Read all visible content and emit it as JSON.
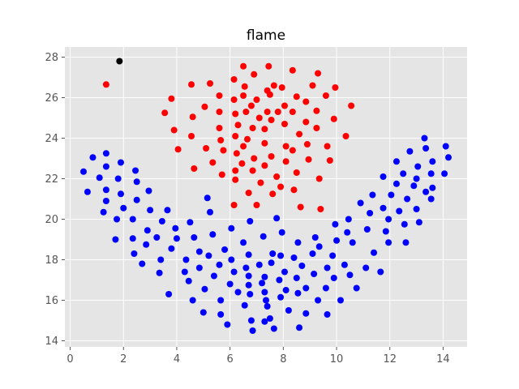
{
  "chart_data": {
    "type": "scatter",
    "title": "flame",
    "xlabel": "",
    "ylabel": "",
    "xlim": [
      -0.2,
      14.9
    ],
    "ylim": [
      13.7,
      28.5
    ],
    "x_ticks": [
      0,
      2,
      4,
      6,
      8,
      10,
      12,
      14
    ],
    "y_ticks": [
      14,
      16,
      18,
      20,
      22,
      24,
      26,
      28
    ],
    "grid": true,
    "style": "ggplot",
    "colors": {
      "background": "#e5e5e5",
      "grid": "#ffffff",
      "blue": "#0000ff",
      "red": "#ff0000",
      "black": "#000000"
    },
    "series": [
      {
        "color": "#000000",
        "points": [
          [
            1.85,
            27.8
          ]
        ]
      },
      {
        "color": "#ff0000",
        "points": [
          [
            1.35,
            26.65
          ],
          [
            3.55,
            25.25
          ],
          [
            3.8,
            25.95
          ],
          [
            3.9,
            24.4
          ],
          [
            4.05,
            23.45
          ],
          [
            4.55,
            26.65
          ],
          [
            4.6,
            25.05
          ],
          [
            4.55,
            24.1
          ],
          [
            4.65,
            22.5
          ],
          [
            5.05,
            25.55
          ],
          [
            5.1,
            23.5
          ],
          [
            5.25,
            26.7
          ],
          [
            5.35,
            22.8
          ],
          [
            5.6,
            26.1
          ],
          [
            5.6,
            25.3
          ],
          [
            5.6,
            24.5
          ],
          [
            5.65,
            23.9
          ],
          [
            5.7,
            22.2
          ],
          [
            5.75,
            23.4
          ],
          [
            6.15,
            26.9
          ],
          [
            6.15,
            25.9
          ],
          [
            6.2,
            25.2
          ],
          [
            6.2,
            24.1
          ],
          [
            6.25,
            23.25
          ],
          [
            6.2,
            22.4
          ],
          [
            6.2,
            21.95
          ],
          [
            6.15,
            20.7
          ],
          [
            6.3,
            24.65
          ],
          [
            6.45,
            22.75
          ],
          [
            6.5,
            27.55
          ],
          [
            6.55,
            26.55
          ],
          [
            6.5,
            26.1
          ],
          [
            6.6,
            25.3
          ],
          [
            6.5,
            23.6
          ],
          [
            6.65,
            23.95
          ],
          [
            6.7,
            21.3
          ],
          [
            6.8,
            25.6
          ],
          [
            6.85,
            24.5
          ],
          [
            6.85,
            22.4
          ],
          [
            6.9,
            27.15
          ],
          [
            6.9,
            23.0
          ],
          [
            7.0,
            25.9
          ],
          [
            7.0,
            20.7
          ],
          [
            7.1,
            25.0
          ],
          [
            7.15,
            21.8
          ],
          [
            7.3,
            24.45
          ],
          [
            7.3,
            23.75
          ],
          [
            7.3,
            22.65
          ],
          [
            7.4,
            26.35
          ],
          [
            7.4,
            25.3
          ],
          [
            7.45,
            27.55
          ],
          [
            7.5,
            26.15
          ],
          [
            7.55,
            24.9
          ],
          [
            7.55,
            23.1
          ],
          [
            7.6,
            21.25
          ],
          [
            7.65,
            26.6
          ],
          [
            7.75,
            22.1
          ],
          [
            7.8,
            25.3
          ],
          [
            7.9,
            21.6
          ],
          [
            7.95,
            26.5
          ],
          [
            8.05,
            25.6
          ],
          [
            8.05,
            24.7
          ],
          [
            8.1,
            23.6
          ],
          [
            8.1,
            22.85
          ],
          [
            8.35,
            27.35
          ],
          [
            8.35,
            25.3
          ],
          [
            8.35,
            23.4
          ],
          [
            8.4,
            21.45
          ],
          [
            8.5,
            26.05
          ],
          [
            8.5,
            22.3
          ],
          [
            8.6,
            24.2
          ],
          [
            8.65,
            20.6
          ],
          [
            8.85,
            25.8
          ],
          [
            8.85,
            24.8
          ],
          [
            8.9,
            23.7
          ],
          [
            8.95,
            22.95
          ],
          [
            9.1,
            26.6
          ],
          [
            9.25,
            25.35
          ],
          [
            9.25,
            24.5
          ],
          [
            9.3,
            27.2
          ],
          [
            9.35,
            22.0
          ],
          [
            9.4,
            20.5
          ],
          [
            9.6,
            26.1
          ],
          [
            9.65,
            23.6
          ],
          [
            9.75,
            22.9
          ],
          [
            9.9,
            24.95
          ],
          [
            9.95,
            26.5
          ],
          [
            10.35,
            24.1
          ],
          [
            10.55,
            25.6
          ]
        ]
      },
      {
        "color": "#0000ff",
        "points": [
          [
            0.5,
            22.35
          ],
          [
            0.65,
            21.35
          ],
          [
            0.85,
            23.05
          ],
          [
            1.1,
            22.05
          ],
          [
            1.25,
            20.35
          ],
          [
            1.35,
            23.25
          ],
          [
            1.35,
            22.6
          ],
          [
            1.35,
            21.45
          ],
          [
            1.35,
            20.9
          ],
          [
            1.7,
            19.0
          ],
          [
            1.75,
            20.0
          ],
          [
            1.8,
            22.0
          ],
          [
            1.9,
            22.8
          ],
          [
            1.9,
            21.25
          ],
          [
            2.0,
            20.55
          ],
          [
            2.35,
            19.05
          ],
          [
            2.35,
            20.0
          ],
          [
            2.4,
            18.3
          ],
          [
            2.45,
            22.4
          ],
          [
            2.5,
            21.85
          ],
          [
            2.5,
            20.95
          ],
          [
            2.7,
            17.8
          ],
          [
            2.85,
            18.75
          ],
          [
            2.9,
            19.45
          ],
          [
            2.95,
            21.4
          ],
          [
            3.0,
            20.45
          ],
          [
            3.25,
            19.1
          ],
          [
            3.35,
            17.35
          ],
          [
            3.4,
            18.0
          ],
          [
            3.45,
            19.9
          ],
          [
            3.65,
            20.45
          ],
          [
            3.7,
            16.3
          ],
          [
            3.8,
            18.55
          ],
          [
            3.95,
            19.55
          ],
          [
            4.0,
            19.05
          ],
          [
            4.3,
            17.4
          ],
          [
            4.35,
            18.0
          ],
          [
            4.45,
            16.95
          ],
          [
            4.5,
            19.85
          ],
          [
            4.6,
            16.0
          ],
          [
            4.65,
            19.1
          ],
          [
            4.85,
            17.6
          ],
          [
            4.85,
            18.4
          ],
          [
            5.0,
            15.4
          ],
          [
            5.05,
            16.55
          ],
          [
            5.15,
            21.05
          ],
          [
            5.2,
            18.2
          ],
          [
            5.25,
            20.35
          ],
          [
            5.35,
            19.25
          ],
          [
            5.4,
            17.2
          ],
          [
            5.6,
            17.75
          ],
          [
            5.65,
            16.0
          ],
          [
            5.65,
            15.3
          ],
          [
            5.8,
            18.5
          ],
          [
            5.9,
            14.8
          ],
          [
            6.0,
            16.8
          ],
          [
            6.05,
            18.0
          ],
          [
            6.05,
            19.55
          ],
          [
            6.15,
            17.4
          ],
          [
            6.3,
            16.4
          ],
          [
            6.5,
            18.85
          ],
          [
            6.55,
            15.75
          ],
          [
            6.6,
            17.6
          ],
          [
            6.7,
            18.25
          ],
          [
            6.7,
            17.2
          ],
          [
            6.7,
            16.75
          ],
          [
            6.75,
            19.9
          ],
          [
            6.75,
            16.3
          ],
          [
            6.8,
            15.0
          ],
          [
            6.85,
            14.5
          ],
          [
            7.1,
            17.75
          ],
          [
            7.2,
            16.85
          ],
          [
            7.25,
            19.15
          ],
          [
            7.3,
            17.15
          ],
          [
            7.3,
            16.4
          ],
          [
            7.3,
            14.95
          ],
          [
            7.35,
            16.0
          ],
          [
            7.4,
            15.7
          ],
          [
            7.5,
            15.1
          ],
          [
            7.55,
            17.85
          ],
          [
            7.6,
            18.3
          ],
          [
            7.65,
            14.6
          ],
          [
            7.75,
            20.05
          ],
          [
            7.85,
            17.0
          ],
          [
            7.9,
            18.2
          ],
          [
            7.9,
            16.15
          ],
          [
            7.95,
            19.35
          ],
          [
            8.05,
            17.4
          ],
          [
            8.1,
            16.5
          ],
          [
            8.2,
            15.5
          ],
          [
            8.4,
            18.1
          ],
          [
            8.5,
            17.1
          ],
          [
            8.55,
            16.35
          ],
          [
            8.55,
            18.85
          ],
          [
            8.6,
            14.65
          ],
          [
            8.7,
            17.7
          ],
          [
            8.85,
            16.6
          ],
          [
            8.85,
            15.35
          ],
          [
            9.1,
            18.3
          ],
          [
            9.15,
            17.3
          ],
          [
            9.2,
            19.1
          ],
          [
            9.3,
            16.0
          ],
          [
            9.35,
            18.65
          ],
          [
            9.6,
            16.6
          ],
          [
            9.65,
            15.3
          ],
          [
            9.65,
            17.6
          ],
          [
            9.85,
            18.2
          ],
          [
            9.9,
            17.1
          ],
          [
            9.95,
            19.75
          ],
          [
            10.0,
            18.95
          ],
          [
            10.15,
            16.0
          ],
          [
            10.3,
            17.75
          ],
          [
            10.4,
            19.35
          ],
          [
            10.45,
            20.0
          ],
          [
            10.5,
            17.25
          ],
          [
            10.6,
            18.85
          ],
          [
            10.75,
            16.6
          ],
          [
            10.9,
            20.8
          ],
          [
            11.1,
            17.6
          ],
          [
            11.15,
            19.5
          ],
          [
            11.25,
            20.3
          ],
          [
            11.35,
            21.2
          ],
          [
            11.4,
            18.35
          ],
          [
            11.65,
            17.4
          ],
          [
            11.75,
            22.1
          ],
          [
            11.75,
            20.55
          ],
          [
            11.85,
            19.4
          ],
          [
            11.95,
            18.85
          ],
          [
            11.95,
            20.0
          ],
          [
            12.05,
            21.2
          ],
          [
            12.25,
            22.85
          ],
          [
            12.25,
            21.75
          ],
          [
            12.35,
            20.4
          ],
          [
            12.5,
            22.25
          ],
          [
            12.55,
            19.75
          ],
          [
            12.6,
            18.85
          ],
          [
            12.65,
            21.0
          ],
          [
            12.75,
            23.35
          ],
          [
            12.9,
            21.65
          ],
          [
            13.0,
            22.0
          ],
          [
            13.0,
            20.5
          ],
          [
            13.05,
            22.6
          ],
          [
            13.1,
            19.85
          ],
          [
            13.3,
            24.0
          ],
          [
            13.35,
            23.5
          ],
          [
            13.35,
            21.35
          ],
          [
            13.55,
            22.25
          ],
          [
            13.55,
            21.0
          ],
          [
            13.6,
            22.85
          ],
          [
            13.6,
            21.55
          ],
          [
            14.05,
            22.25
          ],
          [
            14.1,
            23.6
          ],
          [
            14.2,
            23.05
          ]
        ]
      }
    ]
  }
}
